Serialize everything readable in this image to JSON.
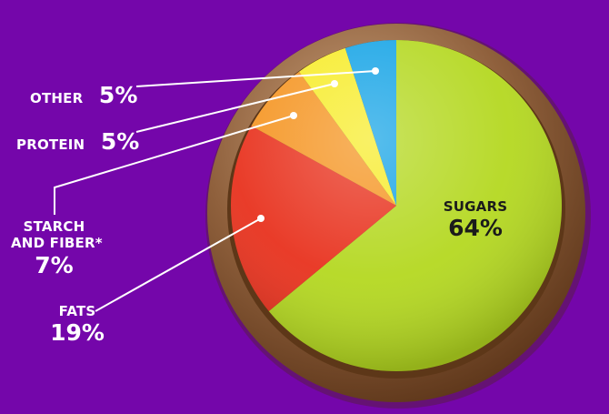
{
  "chart_data": {
    "type": "pie",
    "start_angle_deg": -90,
    "direction": "clockwise",
    "slices": [
      {
        "label": "SUGARS",
        "value": 64,
        "display": "64%",
        "color": "#b4d820"
      },
      {
        "label": "FATS",
        "value": 19,
        "display": "19%",
        "color": "#e8321e"
      },
      {
        "label": "STARCH AND FIBER*",
        "label_lines": [
          "STARCH",
          "AND FIBER*"
        ],
        "value": 7,
        "display": "7%",
        "color": "#f59522"
      },
      {
        "label": "PROTEIN",
        "value": 5,
        "display": "5%",
        "color": "#f7ec2a"
      },
      {
        "label": "OTHER",
        "value": 5,
        "display": "5%",
        "color": "#16a4e6"
      }
    ]
  },
  "theme": {
    "background": "#7406aa",
    "rim": "#8a5a38",
    "leader": "#ffffff",
    "text": "#ffffff",
    "inside_text": "#1b1b1b"
  }
}
